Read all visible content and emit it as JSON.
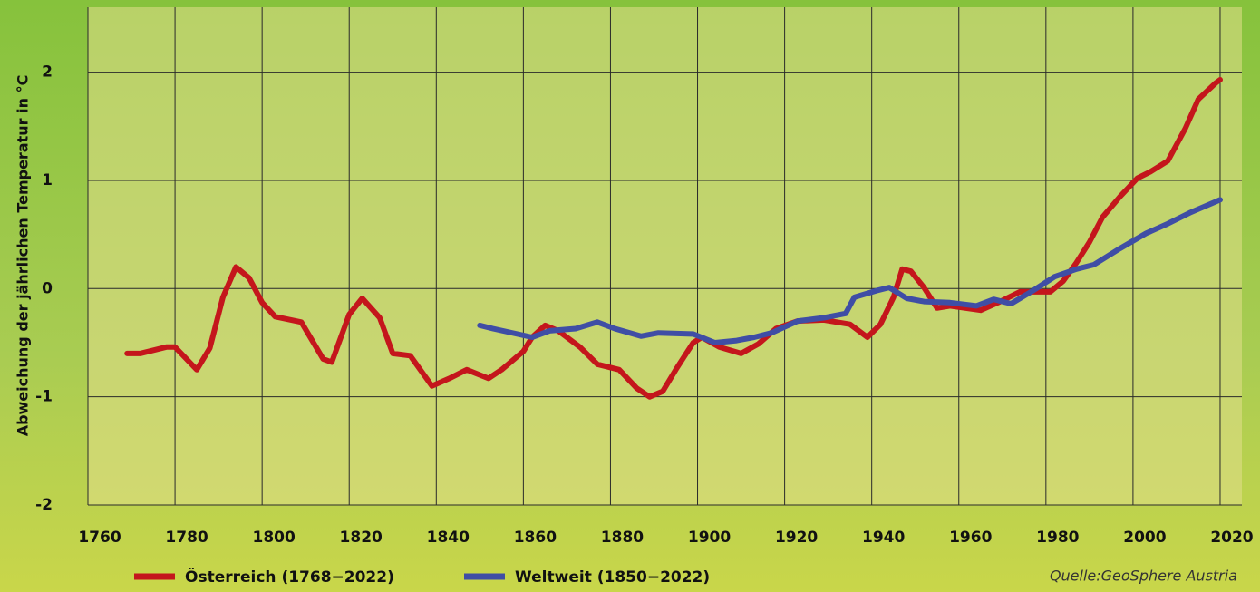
{
  "chart_data": {
    "type": "line",
    "y_label": "Abweichung der jährlichen Temperatur in °C",
    "source": "Quelle:GeoSphere Austria",
    "xlim": [
      1760,
      2025
    ],
    "xticks": [
      1760,
      1780,
      1800,
      1820,
      1840,
      1860,
      1880,
      1900,
      1920,
      1940,
      1960,
      1980,
      2000,
      2020
    ],
    "ylim": [
      -2,
      2.6
    ],
    "yticks": [
      -2,
      -1,
      0,
      1,
      2
    ],
    "grid": true,
    "series": [
      {
        "name": "Österreich (1768−2022)",
        "color": "#c4161c",
        "x": [
          1769,
          1772,
          1778,
          1780,
          1785,
          1788,
          1791,
          1794,
          1797,
          1800,
          1803,
          1809,
          1814,
          1816,
          1820,
          1823,
          1827,
          1830,
          1834,
          1839,
          1843,
          1847,
          1852,
          1855,
          1860,
          1862,
          1865,
          1868,
          1873,
          1877,
          1882,
          1886,
          1889,
          1892,
          1895,
          1899,
          1901,
          1905,
          1910,
          1914,
          1918,
          1923,
          1929,
          1935,
          1939,
          1942,
          1945,
          1947,
          1949,
          1952,
          1955,
          1958,
          1965,
          1969,
          1974,
          1978,
          1981,
          1984,
          1987,
          1990,
          1993,
          1997,
          2001,
          2004,
          2008,
          2012,
          2015,
          2019,
          2020
        ],
        "values": [
          -0.6,
          -0.6,
          -0.54,
          -0.54,
          -0.75,
          -0.55,
          -0.08,
          0.2,
          0.1,
          -0.13,
          -0.26,
          -0.31,
          -0.65,
          -0.68,
          -0.24,
          -0.09,
          -0.27,
          -0.6,
          -0.62,
          -0.9,
          -0.83,
          -0.75,
          -0.83,
          -0.75,
          -0.58,
          -0.45,
          -0.34,
          -0.39,
          -0.54,
          -0.7,
          -0.75,
          -0.92,
          -1.0,
          -0.95,
          -0.75,
          -0.5,
          -0.45,
          -0.54,
          -0.6,
          -0.51,
          -0.37,
          -0.3,
          -0.29,
          -0.33,
          -0.45,
          -0.33,
          -0.08,
          0.18,
          0.16,
          0.01,
          -0.18,
          -0.16,
          -0.2,
          -0.13,
          -0.03,
          -0.03,
          -0.03,
          0.07,
          0.24,
          0.43,
          0.66,
          0.85,
          1.02,
          1.08,
          1.18,
          1.48,
          1.75,
          1.9,
          1.93
        ]
      },
      {
        "name": "Weltweit (1850−2022)",
        "color": "#3f4ea5",
        "x": [
          1850,
          1853,
          1862,
          1866,
          1872,
          1877,
          1881,
          1887,
          1891,
          1899,
          1904,
          1909,
          1913,
          1917,
          1923,
          1929,
          1934,
          1936,
          1941,
          1944,
          1948,
          1952,
          1958,
          1964,
          1968,
          1972,
          1977,
          1982,
          1987,
          1991,
          1997,
          2003,
          2008,
          2013,
          2020
        ],
        "values": [
          -0.34,
          -0.37,
          -0.45,
          -0.39,
          -0.37,
          -0.31,
          -0.37,
          -0.44,
          -0.41,
          -0.42,
          -0.5,
          -0.48,
          -0.45,
          -0.41,
          -0.3,
          -0.27,
          -0.23,
          -0.08,
          -0.02,
          0.01,
          -0.09,
          -0.12,
          -0.13,
          -0.16,
          -0.1,
          -0.14,
          -0.02,
          0.11,
          0.18,
          0.22,
          0.37,
          0.51,
          0.6,
          0.7,
          0.82
        ]
      }
    ]
  }
}
